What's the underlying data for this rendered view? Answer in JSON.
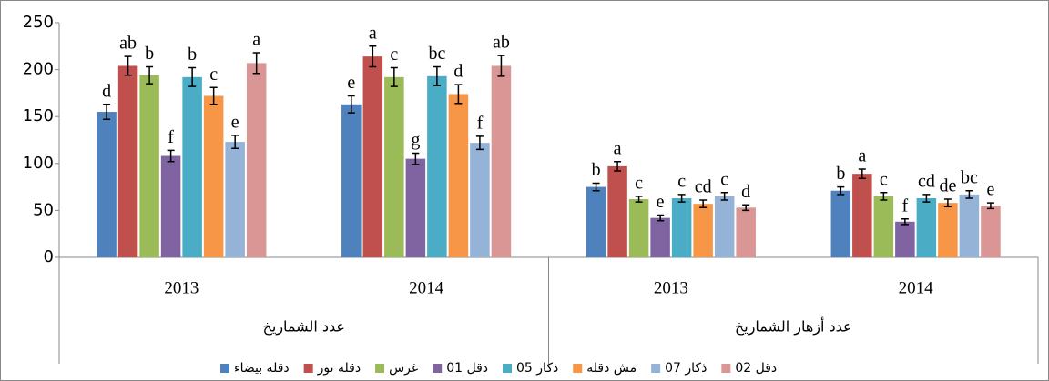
{
  "chart_data": {
    "type": "bar",
    "category_groups": [
      {
        "name": "عدد الشماريخ",
        "categories": [
          "2013",
          "2014"
        ]
      },
      {
        "name": "عدد أزهار الشماريخ",
        "categories": [
          "2013",
          "2014"
        ]
      }
    ],
    "ylim": [
      0,
      250
    ],
    "yticks": [
      0,
      50,
      100,
      150,
      200,
      250
    ],
    "grid": false,
    "legend": "bottom",
    "series": [
      {
        "name": "دقلة بيضاء",
        "color": "#4f81bd",
        "values": [
          155,
          163,
          75,
          71
        ],
        "errors": [
          8,
          9,
          4,
          4
        ],
        "letters": [
          "d",
          "e",
          "b",
          "b"
        ]
      },
      {
        "name": "دقلة نور",
        "color": "#c0504d",
        "values": [
          204,
          214,
          97,
          89
        ],
        "errors": [
          10,
          11,
          5,
          5
        ],
        "letters": [
          "ab",
          "a",
          "a",
          "a"
        ]
      },
      {
        "name": "غرس",
        "color": "#9bbb59",
        "values": [
          194,
          192,
          62,
          65
        ],
        "errors": [
          9,
          10,
          3,
          4
        ],
        "letters": [
          "b",
          "c",
          "c",
          "c"
        ]
      },
      {
        "name": "دقل 01",
        "color": "#8064a2",
        "values": [
          108,
          105,
          42,
          38
        ],
        "errors": [
          6,
          6,
          3,
          3
        ],
        "letters": [
          "f",
          "g",
          "e",
          "f"
        ]
      },
      {
        "name": "ذكار 05",
        "color": "#4bacc6",
        "values": [
          192,
          193,
          63,
          63
        ],
        "errors": [
          10,
          10,
          4,
          4
        ],
        "letters": [
          "b",
          "bc",
          "c",
          "cd"
        ]
      },
      {
        "name": "مش دقلة",
        "color": "#f79646",
        "values": [
          172,
          174,
          57,
          58
        ],
        "errors": [
          9,
          10,
          4,
          4
        ],
        "letters": [
          "c",
          "d",
          "cd",
          "de"
        ]
      },
      {
        "name": "ذكار 07",
        "color": "#95b3d7",
        "values": [
          123,
          122,
          65,
          67
        ],
        "errors": [
          7,
          7,
          4,
          4
        ],
        "letters": [
          "e",
          "f",
          "c",
          "bc"
        ]
      },
      {
        "name": "دقل 02",
        "color": "#d99694",
        "values": [
          207,
          204,
          53,
          55
        ],
        "errors": [
          11,
          11,
          3,
          3
        ],
        "letters": [
          "a",
          "ab",
          "d",
          "e"
        ]
      }
    ]
  }
}
